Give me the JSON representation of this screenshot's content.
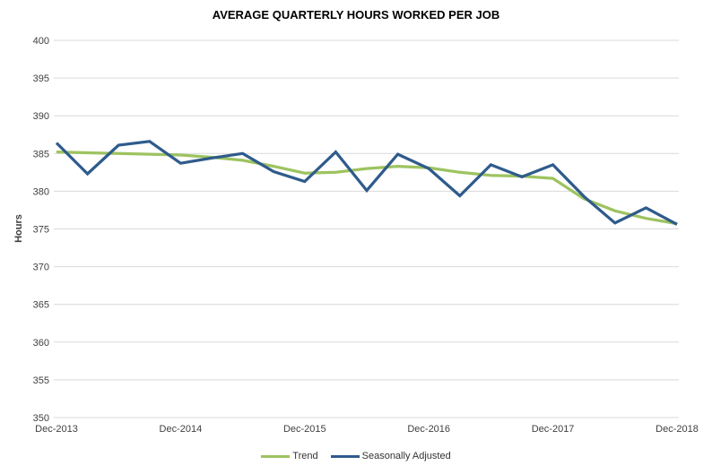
{
  "chart_data": {
    "type": "line",
    "title": "AVERAGE QUARTERLY HOURS WORKED PER JOB",
    "ylabel": "Hours",
    "xlabel": "",
    "ylim": [
      350,
      400
    ],
    "yticks": [
      350,
      355,
      360,
      365,
      370,
      375,
      380,
      385,
      390,
      395,
      400
    ],
    "x_tick_labels": [
      "Dec-2013",
      "Dec-2014",
      "Dec-2015",
      "Dec-2016",
      "Dec-2017",
      "Dec-2018"
    ],
    "x_tick_indices": [
      0,
      4,
      8,
      12,
      16,
      20
    ],
    "categories": [
      "Dec-2013",
      "Mar-2014",
      "Jun-2014",
      "Sep-2014",
      "Dec-2014",
      "Mar-2015",
      "Jun-2015",
      "Sep-2015",
      "Dec-2015",
      "Mar-2016",
      "Jun-2016",
      "Sep-2016",
      "Dec-2016",
      "Mar-2017",
      "Jun-2017",
      "Sep-2017",
      "Dec-2017",
      "Mar-2018",
      "Jun-2018",
      "Sep-2018",
      "Dec-2018"
    ],
    "series": [
      {
        "name": "Trend",
        "color": "#9DC360",
        "values": [
          385.2,
          385.1,
          385.0,
          384.9,
          384.8,
          384.5,
          384.1,
          383.3,
          382.4,
          382.5,
          383.0,
          383.3,
          383.1,
          382.5,
          382.1,
          382.0,
          381.7,
          379.0,
          377.4,
          376.4,
          375.7
        ]
      },
      {
        "name": "Seasonally Adjusted",
        "color": "#2F5B8C",
        "values": [
          386.4,
          382.3,
          386.1,
          386.6,
          383.7,
          384.4,
          385.0,
          382.6,
          381.3,
          385.2,
          380.1,
          384.9,
          383.0,
          379.4,
          383.5,
          381.9,
          383.5,
          379.3,
          375.8,
          377.8,
          375.6
        ]
      }
    ],
    "grid": "horizontal",
    "legend_position": "bottom",
    "colors": {
      "grid": "#D9D9D9",
      "tick_text": "#404040",
      "title_text": "#000000"
    }
  }
}
